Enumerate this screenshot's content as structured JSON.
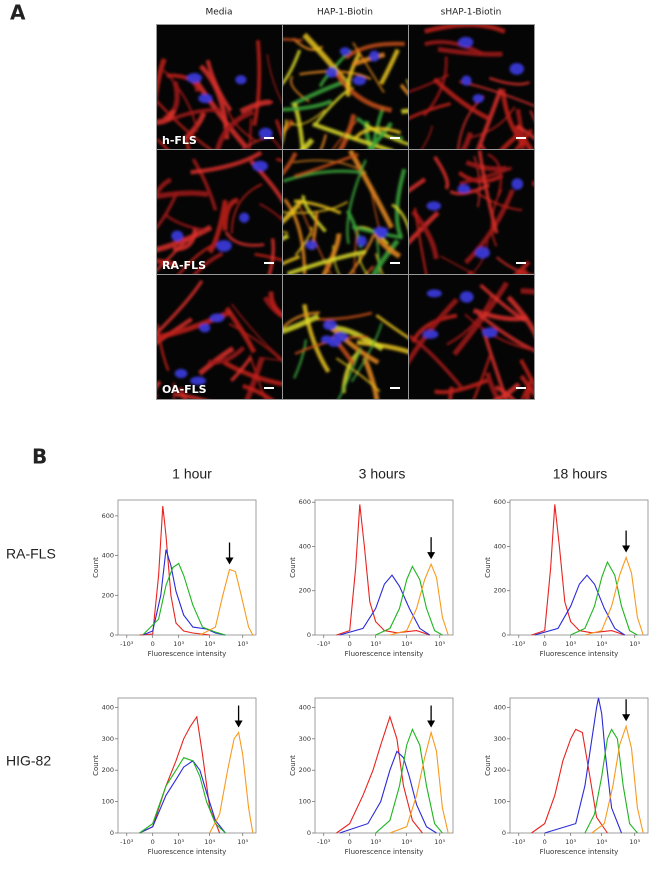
{
  "figure": {
    "panel_a": {
      "label": "A",
      "columns": [
        "Media",
        "HAP-1-Biotin",
        "sHAP-1-Biotin"
      ],
      "rows": [
        "h-FLS",
        "RA-FLS",
        "OA-FLS"
      ]
    },
    "panel_b": {
      "label": "B",
      "columns": [
        "1 hour",
        "3 hours",
        "18 hours"
      ],
      "rows": [
        "RA-FLS",
        "HIG-82"
      ]
    }
  },
  "chart_data": [
    {
      "type": "line",
      "xscale": "biexponential",
      "xlabel": "Fluorescence intensity",
      "ylabel": "Count",
      "xlim": [
        -2000,
        250000
      ],
      "ylim": [
        0,
        680
      ],
      "xticks": [
        {
          "value": -1000,
          "label": "-10³"
        },
        0,
        {
          "value": 1000,
          "label": "10³"
        },
        {
          "value": 10000,
          "label": "10⁴"
        },
        {
          "value": 100000,
          "label": "10⁵"
        }
      ],
      "yticks": [
        0,
        200,
        400,
        600
      ],
      "series": [
        {
          "color": "#e8231f",
          "x": [
            -300,
            0,
            100,
            200,
            300,
            500,
            800,
            1500,
            3000,
            10000
          ],
          "values": [
            0,
            5,
            300,
            650,
            500,
            200,
            60,
            20,
            10,
            0
          ]
        },
        {
          "color": "#2a2ad8",
          "x": [
            -200,
            0,
            150,
            300,
            500,
            800,
            1500,
            3000,
            8000,
            15000,
            30000
          ],
          "values": [
            0,
            20,
            200,
            430,
            350,
            220,
            100,
            40,
            30,
            10,
            0
          ]
        },
        {
          "color": "#1fb51f",
          "x": [
            -200,
            100,
            300,
            600,
            1000,
            1500,
            3000,
            6000,
            15000,
            30000
          ],
          "values": [
            0,
            80,
            250,
            340,
            360,
            300,
            150,
            40,
            15,
            0
          ]
        },
        {
          "color": "#f79a1e",
          "x": [
            5000,
            15000,
            25000,
            40000,
            60000,
            90000,
            150000,
            200000
          ],
          "values": [
            0,
            40,
            200,
            330,
            320,
            200,
            40,
            0
          ]
        }
      ]
    },
    {
      "type": "line",
      "xscale": "biexponential",
      "xlabel": "Fluorescence intensity",
      "ylabel": "Count",
      "xlim": [
        -2000,
        250000
      ],
      "ylim": [
        0,
        610
      ],
      "xticks": [
        {
          "value": -1000,
          "label": "-10³"
        },
        0,
        {
          "value": 1000,
          "label": "10³"
        },
        {
          "value": 10000,
          "label": "10⁴"
        },
        {
          "value": 100000,
          "label": "10⁵"
        }
      ],
      "yticks": [
        0,
        200,
        400,
        600
      ],
      "series": [
        {
          "color": "#e8231f",
          "x": [
            -300,
            0,
            100,
            200,
            350,
            600,
            1000,
            2000,
            5000,
            20000,
            50000
          ],
          "values": [
            0,
            20,
            300,
            590,
            400,
            150,
            60,
            20,
            10,
            20,
            0
          ]
        },
        {
          "color": "#2a2ad8",
          "x": [
            -200,
            300,
            1000,
            2000,
            3500,
            6000,
            12000,
            25000,
            50000
          ],
          "values": [
            0,
            30,
            120,
            230,
            270,
            220,
            120,
            30,
            0
          ]
        },
        {
          "color": "#1fb51f",
          "x": [
            1000,
            3000,
            6000,
            10000,
            15000,
            25000,
            40000,
            70000,
            120000
          ],
          "values": [
            0,
            30,
            120,
            250,
            310,
            250,
            120,
            20,
            0
          ]
        },
        {
          "color": "#f79a1e",
          "x": [
            3000,
            10000,
            20000,
            35000,
            55000,
            80000,
            120000,
            180000
          ],
          "values": [
            0,
            20,
            120,
            250,
            320,
            260,
            80,
            0
          ]
        }
      ]
    },
    {
      "type": "line",
      "xscale": "biexponential",
      "xlabel": "Fluorescence intensity",
      "ylabel": "Count",
      "xlim": [
        -2000,
        250000
      ],
      "ylim": [
        0,
        610
      ],
      "xticks": [
        {
          "value": -1000,
          "label": "-10³"
        },
        0,
        {
          "value": 1000,
          "label": "10³"
        },
        {
          "value": 10000,
          "label": "10⁴"
        },
        {
          "value": 100000,
          "label": "10⁵"
        }
      ],
      "yticks": [
        0,
        200,
        400,
        600
      ],
      "series": [
        {
          "color": "#e8231f",
          "x": [
            -300,
            0,
            100,
            200,
            350,
            600,
            1000,
            2000,
            5000,
            20000,
            50000
          ],
          "values": [
            0,
            20,
            300,
            590,
            400,
            150,
            60,
            20,
            10,
            20,
            0
          ]
        },
        {
          "color": "#2a2ad8",
          "x": [
            -200,
            300,
            1000,
            2000,
            3500,
            6000,
            12000,
            25000,
            50000
          ],
          "values": [
            0,
            30,
            130,
            230,
            270,
            230,
            120,
            30,
            0
          ]
        },
        {
          "color": "#1fb51f",
          "x": [
            1000,
            3000,
            6000,
            10000,
            15000,
            25000,
            40000,
            70000,
            120000
          ],
          "values": [
            0,
            30,
            130,
            260,
            330,
            270,
            130,
            20,
            0
          ]
        },
        {
          "color": "#f79a1e",
          "x": [
            3000,
            10000,
            20000,
            35000,
            55000,
            80000,
            120000,
            180000
          ],
          "values": [
            0,
            20,
            130,
            270,
            350,
            280,
            80,
            0
          ]
        }
      ]
    },
    {
      "type": "line",
      "xscale": "biexponential",
      "xlabel": "Fluorescence intensity",
      "ylabel": "Count",
      "xlim": [
        -2000,
        250000
      ],
      "ylim": [
        0,
        430
      ],
      "xticks": [
        {
          "value": -1000,
          "label": "-10³"
        },
        0,
        {
          "value": 1000,
          "label": "10³"
        },
        {
          "value": 10000,
          "label": "10⁴"
        },
        {
          "value": 100000,
          "label": "10⁵"
        }
      ],
      "yticks": [
        0,
        100,
        200,
        300,
        400
      ],
      "series": [
        {
          "color": "#e8231f",
          "x": [
            -300,
            0,
            300,
            800,
            1500,
            2500,
            4000,
            6000,
            10000,
            20000
          ],
          "values": [
            0,
            20,
            150,
            230,
            300,
            340,
            370,
            250,
            80,
            0
          ]
        },
        {
          "color": "#2a2ad8",
          "x": [
            -300,
            0,
            300,
            800,
            1500,
            3000,
            5000,
            8000,
            15000,
            30000
          ],
          "values": [
            0,
            20,
            120,
            170,
            210,
            230,
            200,
            130,
            40,
            0
          ]
        },
        {
          "color": "#1fb51f",
          "x": [
            -300,
            0,
            300,
            800,
            1500,
            3000,
            5000,
            8000,
            15000,
            30000
          ],
          "values": [
            0,
            30,
            150,
            200,
            240,
            230,
            180,
            100,
            30,
            0
          ]
        },
        {
          "color": "#f79a1e",
          "x": [
            10000,
            20000,
            35000,
            55000,
            75000,
            100000,
            150000,
            200000
          ],
          "values": [
            0,
            60,
            200,
            300,
            320,
            250,
            80,
            0
          ]
        }
      ]
    },
    {
      "type": "line",
      "xscale": "biexponential",
      "xlabel": "Fluorescence intensity",
      "ylabel": "Count",
      "xlim": [
        -2000,
        250000
      ],
      "ylim": [
        0,
        430
      ],
      "xticks": [
        {
          "value": -1000,
          "label": "-10³"
        },
        0,
        {
          "value": 1000,
          "label": "10³"
        },
        {
          "value": 10000,
          "label": "10⁴"
        },
        {
          "value": 100000,
          "label": "10⁵"
        }
      ],
      "yticks": [
        0,
        100,
        200,
        300,
        400
      ],
      "series": [
        {
          "color": "#e8231f",
          "x": [
            -300,
            0,
            300,
            800,
            1500,
            3000,
            5000,
            8000,
            15000,
            30000
          ],
          "values": [
            0,
            30,
            120,
            200,
            280,
            370,
            300,
            150,
            40,
            0
          ]
        },
        {
          "color": "#2a2ad8",
          "x": [
            -200,
            500,
            1500,
            3000,
            5000,
            8000,
            12000,
            20000,
            40000,
            80000
          ],
          "values": [
            0,
            30,
            100,
            200,
            260,
            240,
            180,
            90,
            20,
            0
          ]
        },
        {
          "color": "#1fb51f",
          "x": [
            1000,
            3000,
            6000,
            10000,
            15000,
            25000,
            40000,
            70000,
            120000
          ],
          "values": [
            0,
            40,
            150,
            280,
            330,
            280,
            150,
            30,
            0
          ]
        },
        {
          "color": "#f79a1e",
          "x": [
            3000,
            10000,
            20000,
            35000,
            55000,
            80000,
            120000,
            180000
          ],
          "values": [
            0,
            20,
            120,
            240,
            320,
            260,
            80,
            0
          ]
        }
      ]
    },
    {
      "type": "line",
      "xscale": "biexponential",
      "xlabel": "Fluorescence intensity",
      "ylabel": "Count",
      "xlim": [
        -2000,
        250000
      ],
      "ylim": [
        0,
        430
      ],
      "xticks": [
        {
          "value": -1000,
          "label": "-10³"
        },
        0,
        {
          "value": 1000,
          "label": "10³"
        },
        {
          "value": 10000,
          "label": "10⁴"
        },
        {
          "value": 100000,
          "label": "10⁵"
        }
      ],
      "yticks": [
        0,
        100,
        200,
        300,
        400
      ],
      "series": [
        {
          "color": "#e8231f",
          "x": [
            -300,
            0,
            200,
            500,
            1000,
            1500,
            2500,
            4000,
            7000,
            15000
          ],
          "values": [
            0,
            30,
            120,
            230,
            300,
            330,
            320,
            200,
            50,
            0
          ]
        },
        {
          "color": "#2a2ad8",
          "x": [
            0,
            1500,
            3000,
            5000,
            7000,
            8000,
            10000,
            13000,
            20000,
            40000
          ],
          "values": [
            0,
            30,
            150,
            300,
            400,
            430,
            380,
            250,
            80,
            0
          ]
        },
        {
          "color": "#1fb51f",
          "x": [
            3000,
            6000,
            10000,
            15000,
            20000,
            30000,
            45000,
            70000,
            120000
          ],
          "values": [
            0,
            60,
            180,
            300,
            330,
            300,
            150,
            30,
            0
          ]
        },
        {
          "color": "#f79a1e",
          "x": [
            5000,
            12000,
            22000,
            35000,
            55000,
            80000,
            120000,
            180000
          ],
          "values": [
            0,
            30,
            150,
            280,
            340,
            270,
            80,
            0
          ]
        }
      ]
    }
  ]
}
